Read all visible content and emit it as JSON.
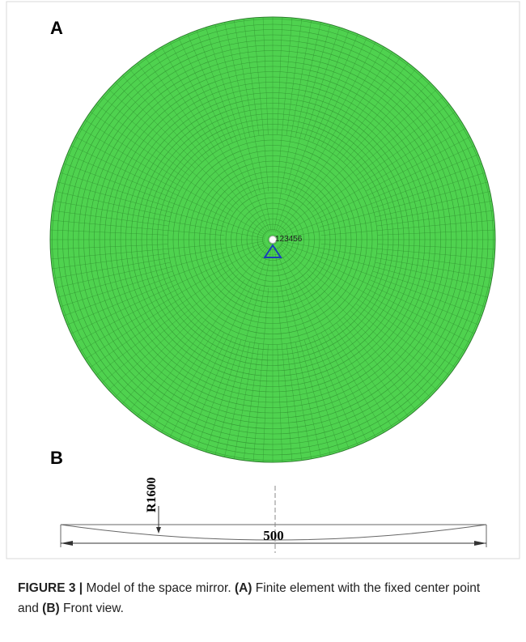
{
  "panels": [
    {
      "label": "A",
      "node_label": "123456"
    },
    {
      "label": "B",
      "radius_label": "R1600",
      "width_label": "500"
    }
  ],
  "caption": [
    {
      "text": "FIGURE 3 |",
      "bold": true
    },
    {
      "text": " Model of the space mirror. ",
      "bold": false
    },
    {
      "text": "(A)",
      "bold": true
    },
    {
      "text": " Finite element with the fixed center point and ",
      "bold": false
    },
    {
      "text": "(B)",
      "bold": true
    },
    {
      "text": " Front view.",
      "bold": false
    }
  ]
}
